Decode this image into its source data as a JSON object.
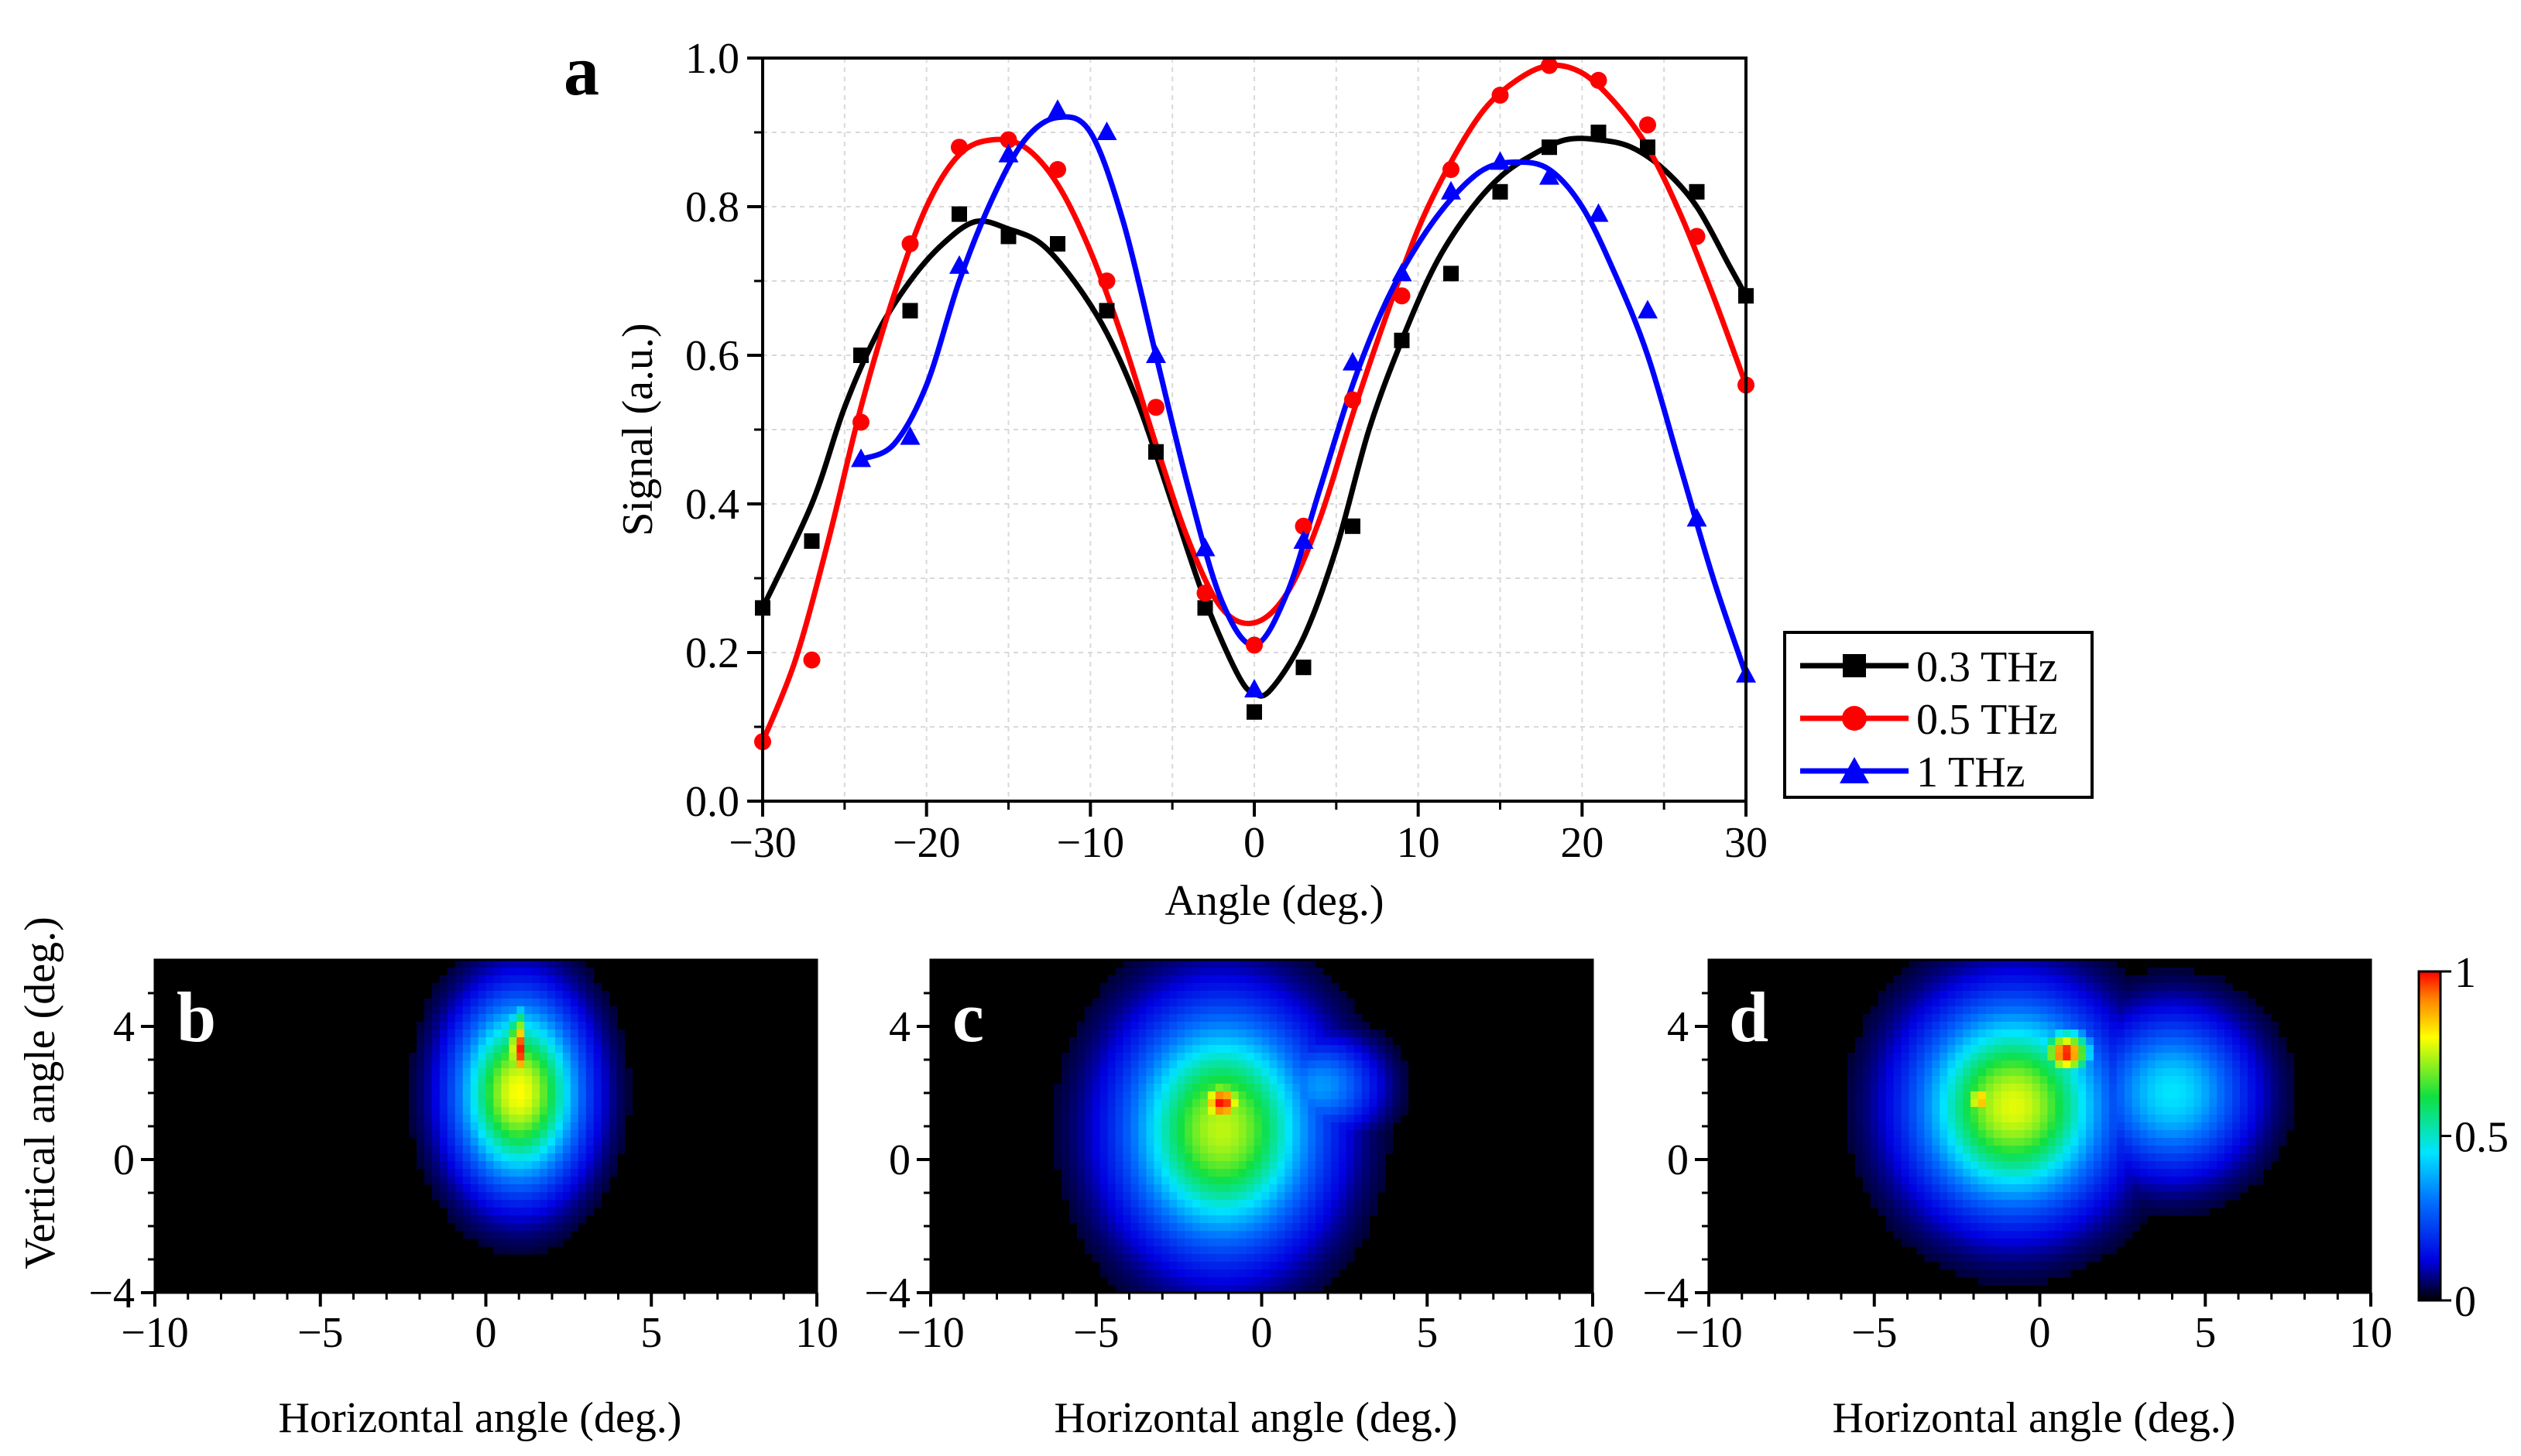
{
  "colors": {
    "s03": "#000000",
    "s05": "#ff0000",
    "s1": "#0000ff",
    "grid": "#d9d9d9",
    "heatmap_bg": "#000000",
    "panel_label_light": "#ffffff"
  },
  "colorbar": {
    "ticks": [
      "1",
      "0.5",
      "0"
    ],
    "values": [
      1,
      0.5,
      0
    ]
  },
  "chart_data": [
    {
      "id": "a",
      "panel_label": "a",
      "type": "line",
      "xlabel": "Angle (deg.)",
      "ylabel": "Signal (a.u.)",
      "xlim": [
        -30,
        30
      ],
      "ylim": [
        0,
        1
      ],
      "xticks": [
        -30,
        -20,
        -10,
        0,
        10,
        20,
        30
      ],
      "xtick_labels": [
        "−30",
        "−20",
        "−10",
        "0",
        "10",
        "20",
        "30"
      ],
      "yticks": [
        0,
        0.2,
        0.4,
        0.6,
        0.8,
        1.0
      ],
      "ytick_labels": [
        "0.0",
        "0.2",
        "0.4",
        "0.6",
        "0.8",
        "1.0"
      ],
      "grid": true,
      "legend_position": "bottom-right, outside plot",
      "series": [
        {
          "name": "0.3 THz",
          "marker": "square",
          "color": "#000000",
          "points": {
            "x": [
              -30,
              -27,
              -24,
              -21,
              -18,
              -15,
              -12,
              -9,
              -6,
              -3,
              0,
              3,
              6,
              9,
              12,
              15,
              18,
              21,
              24,
              27,
              30
            ],
            "y": [
              0.26,
              0.35,
              0.6,
              0.66,
              0.79,
              0.76,
              0.75,
              0.66,
              0.47,
              0.26,
              0.12,
              0.18,
              0.37,
              0.62,
              0.71,
              0.82,
              0.88,
              0.9,
              0.88,
              0.82,
              0.68
            ]
          },
          "fit": {
            "x": [
              -30,
              -27,
              -25,
              -23,
              -21,
              -19,
              -17,
              -15,
              -13,
              -11,
              -9,
              -7,
              -5,
              -3,
              -1,
              0,
              1,
              3,
              5,
              7,
              9,
              11,
              13,
              15,
              17,
              19,
              21,
              23,
              25,
              27,
              29,
              30
            ],
            "y": [
              0.26,
              0.4,
              0.53,
              0.63,
              0.7,
              0.75,
              0.78,
              0.77,
              0.75,
              0.7,
              0.63,
              0.53,
              0.4,
              0.27,
              0.17,
              0.145,
              0.15,
              0.22,
              0.34,
              0.5,
              0.62,
              0.72,
              0.79,
              0.84,
              0.87,
              0.89,
              0.89,
              0.88,
              0.85,
              0.8,
              0.72,
              0.68
            ]
          }
        },
        {
          "name": "0.5 THz",
          "marker": "circle",
          "color": "#ff0000",
          "points": {
            "x": [
              -30,
              -27,
              -24,
              -21,
              -18,
              -15,
              -12,
              -9,
              -6,
              -3,
              0,
              3,
              6,
              9,
              12,
              15,
              18,
              21,
              24,
              27,
              30
            ],
            "y": [
              0.08,
              0.19,
              0.51,
              0.75,
              0.88,
              0.89,
              0.85,
              0.7,
              0.53,
              0.28,
              0.21,
              0.37,
              0.54,
              0.68,
              0.85,
              0.95,
              0.99,
              0.97,
              0.91,
              0.76,
              0.56
            ]
          },
          "fit": {
            "x": [
              -30,
              -28,
              -26,
              -24,
              -22,
              -20,
              -18,
              -16,
              -14,
              -12,
              -10,
              -8,
              -6,
              -4,
              -2,
              0,
              2,
              4,
              6,
              8,
              10,
              12,
              14,
              16,
              18,
              20,
              22,
              24,
              26,
              28,
              30
            ],
            "y": [
              0.08,
              0.19,
              0.35,
              0.53,
              0.68,
              0.8,
              0.87,
              0.89,
              0.88,
              0.83,
              0.74,
              0.62,
              0.48,
              0.35,
              0.26,
              0.24,
              0.28,
              0.38,
              0.52,
              0.65,
              0.77,
              0.86,
              0.93,
              0.97,
              0.99,
              0.98,
              0.94,
              0.88,
              0.79,
              0.68,
              0.56
            ]
          }
        },
        {
          "name": "1 THz",
          "marker": "triangle",
          "color": "#0000ff",
          "points": {
            "x": [
              -24,
              -21,
              -18,
              -15,
              -12,
              -9,
              -6,
              -3,
              0,
              3,
              6,
              9,
              12,
              15,
              18,
              21,
              24,
              27,
              30
            ],
            "y": [
              0.46,
              0.49,
              0.72,
              0.87,
              0.93,
              0.9,
              0.6,
              0.34,
              0.15,
              0.35,
              0.59,
              0.71,
              0.82,
              0.86,
              0.84,
              0.79,
              0.66,
              0.38,
              0.17
            ]
          },
          "fit": {
            "x": [
              -24,
              -22,
              -20,
              -18,
              -16,
              -14,
              -12,
              -10,
              -8,
              -6,
              -4,
              -2,
              0,
              2,
              4,
              6,
              8,
              10,
              12,
              14,
              16,
              18,
              20,
              22,
              24,
              26,
              28,
              30
            ],
            "y": [
              0.46,
              0.48,
              0.56,
              0.7,
              0.81,
              0.89,
              0.92,
              0.9,
              0.78,
              0.6,
              0.42,
              0.27,
              0.21,
              0.28,
              0.42,
              0.56,
              0.67,
              0.75,
              0.81,
              0.85,
              0.86,
              0.85,
              0.8,
              0.71,
              0.6,
              0.45,
              0.3,
              0.17
            ]
          }
        }
      ]
    },
    {
      "id": "b",
      "panel_label": "b",
      "type": "heatmap",
      "xlabel": "Horizontal angle (deg.)",
      "ylabel": "Vertical angle (deg.)",
      "xlim": [
        -10,
        10
      ],
      "ylim": [
        -4,
        6
      ],
      "xticks": [
        -10,
        -5,
        0,
        5,
        10
      ],
      "xtick_labels": [
        "−10",
        "−5",
        "0",
        "5",
        "10"
      ],
      "yticks": [
        -4,
        0,
        4
      ],
      "ytick_labels": [
        "−4",
        "0",
        "4"
      ],
      "spots": [
        {
          "x": 1.0,
          "y": 2.0,
          "sx": 1.3,
          "sy": 1.9,
          "peak": 0.8
        },
        {
          "x": 1.0,
          "y": 3.3,
          "sx": 0.25,
          "sy": 0.9,
          "peak": 1.0
        }
      ]
    },
    {
      "id": "c",
      "panel_label": "c",
      "type": "heatmap",
      "xlabel": "Horizontal angle (deg.)",
      "ylabel": "",
      "xlim": [
        -10,
        10
      ],
      "ylim": [
        -4,
        6
      ],
      "xticks": [
        -10,
        -5,
        0,
        5,
        10
      ],
      "xtick_labels": [
        "−10",
        "−5",
        "0",
        "5",
        "10"
      ],
      "yticks": [
        -4,
        0,
        4
      ],
      "ytick_labels": [
        "−4",
        "0",
        "4"
      ],
      "spots": [
        {
          "x": -1.2,
          "y": 0.9,
          "sx": 2.0,
          "sy": 2.4,
          "peak": 0.75
        },
        {
          "x": -1.2,
          "y": 1.7,
          "sx": 0.55,
          "sy": 0.55,
          "peak": 1.0
        },
        {
          "x": 1.8,
          "y": 2.2,
          "sx": 1.2,
          "sy": 1.0,
          "peak": 0.35
        }
      ]
    },
    {
      "id": "d",
      "panel_label": "d",
      "type": "heatmap",
      "xlabel": "Horizontal angle (deg.)",
      "ylabel": "",
      "xlim": [
        -10,
        10
      ],
      "ylim": [
        -4,
        6
      ],
      "xticks": [
        -10,
        -5,
        0,
        5,
        10
      ],
      "xtick_labels": [
        "−10",
        "−5",
        "0",
        "5",
        "10"
      ],
      "yticks": [
        -4,
        0,
        4
      ],
      "ytick_labels": [
        "−4",
        "0",
        "4"
      ],
      "spots": [
        {
          "x": -0.8,
          "y": 1.6,
          "sx": 2.0,
          "sy": 2.1,
          "peak": 0.78
        },
        {
          "x": 0.8,
          "y": 3.2,
          "sx": 0.55,
          "sy": 0.5,
          "peak": 1.0
        },
        {
          "x": 4.0,
          "y": 2.0,
          "sx": 1.6,
          "sy": 1.6,
          "peak": 0.45
        },
        {
          "x": -1.8,
          "y": 1.8,
          "sx": 0.35,
          "sy": 0.35,
          "peak": 0.9
        }
      ]
    }
  ]
}
